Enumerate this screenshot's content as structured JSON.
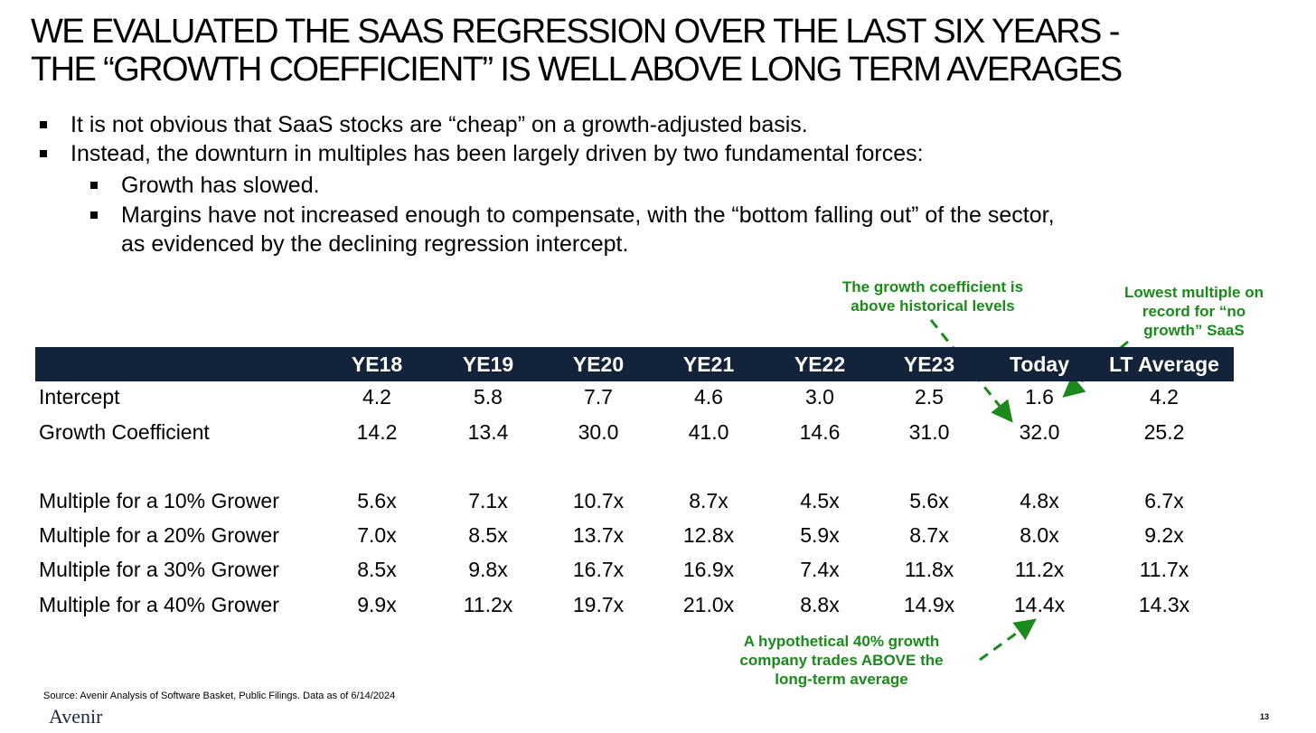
{
  "title": {
    "line1": "WE EVALUATED THE SAAS REGRESSION OVER THE LAST SIX YEARS -",
    "line2": "THE “GROWTH COEFFICIENT” IS WELL ABOVE LONG TERM AVERAGES"
  },
  "bullets": [
    "It is not obvious that SaaS stocks are “cheap” on a growth-adjusted basis.",
    "Instead, the downturn in multiples has been largely driven by two fundamental forces:"
  ],
  "sub_bullets": [
    "Growth has slowed.",
    "Margins have not increased enough to compensate, with the “bottom falling out” of the sector,",
    "as evidenced by the declining regression intercept."
  ],
  "callouts": {
    "growth_coefficient": [
      "The growth coefficient is",
      "above historical levels"
    ],
    "lowest_multiple": [
      "Lowest multiple on",
      "record for “no",
      "growth” SaaS"
    ],
    "hypothetical": [
      "A hypothetical 40% growth",
      "company trades ABOVE the",
      "long-term average"
    ]
  },
  "table": {
    "columns": [
      "YE18",
      "YE19",
      "YE20",
      "YE21",
      "YE22",
      "YE23",
      "Today",
      "LT Average"
    ],
    "rows": [
      {
        "label": "Intercept",
        "values": [
          "4.2",
          "5.8",
          "7.7",
          "4.6",
          "3.0",
          "2.5",
          "1.6",
          "4.2"
        ]
      },
      {
        "label": "Growth Coefficient",
        "values": [
          "14.2",
          "13.4",
          "30.0",
          "41.0",
          "14.6",
          "31.0",
          "32.0",
          "25.2"
        ]
      },
      {
        "label": "Multiple for a 10% Grower",
        "values": [
          "5.6x",
          "7.1x",
          "10.7x",
          "8.7x",
          "4.5x",
          "5.6x",
          "4.8x",
          "6.7x"
        ]
      },
      {
        "label": "Multiple for a 20% Grower",
        "values": [
          "7.0x",
          "8.5x",
          "13.7x",
          "12.8x",
          "5.9x",
          "8.7x",
          "8.0x",
          "9.2x"
        ]
      },
      {
        "label": "Multiple for a 30% Grower",
        "values": [
          "8.5x",
          "9.8x",
          "16.7x",
          "16.9x",
          "7.4x",
          "11.8x",
          "11.2x",
          "11.7x"
        ]
      },
      {
        "label": "Multiple for a 40% Grower",
        "values": [
          "9.9x",
          "11.2x",
          "19.7x",
          "21.0x",
          "8.8x",
          "14.9x",
          "14.4x",
          "14.3x"
        ]
      }
    ]
  },
  "colors": {
    "header_bg": "#13233a",
    "callout": "#1a8a1a"
  },
  "footer": {
    "source": "Source: Avenir Analysis of Software Basket, Public Filings. Data as of 6/14/2024",
    "logo": "Avenir",
    "page_number": "13"
  }
}
